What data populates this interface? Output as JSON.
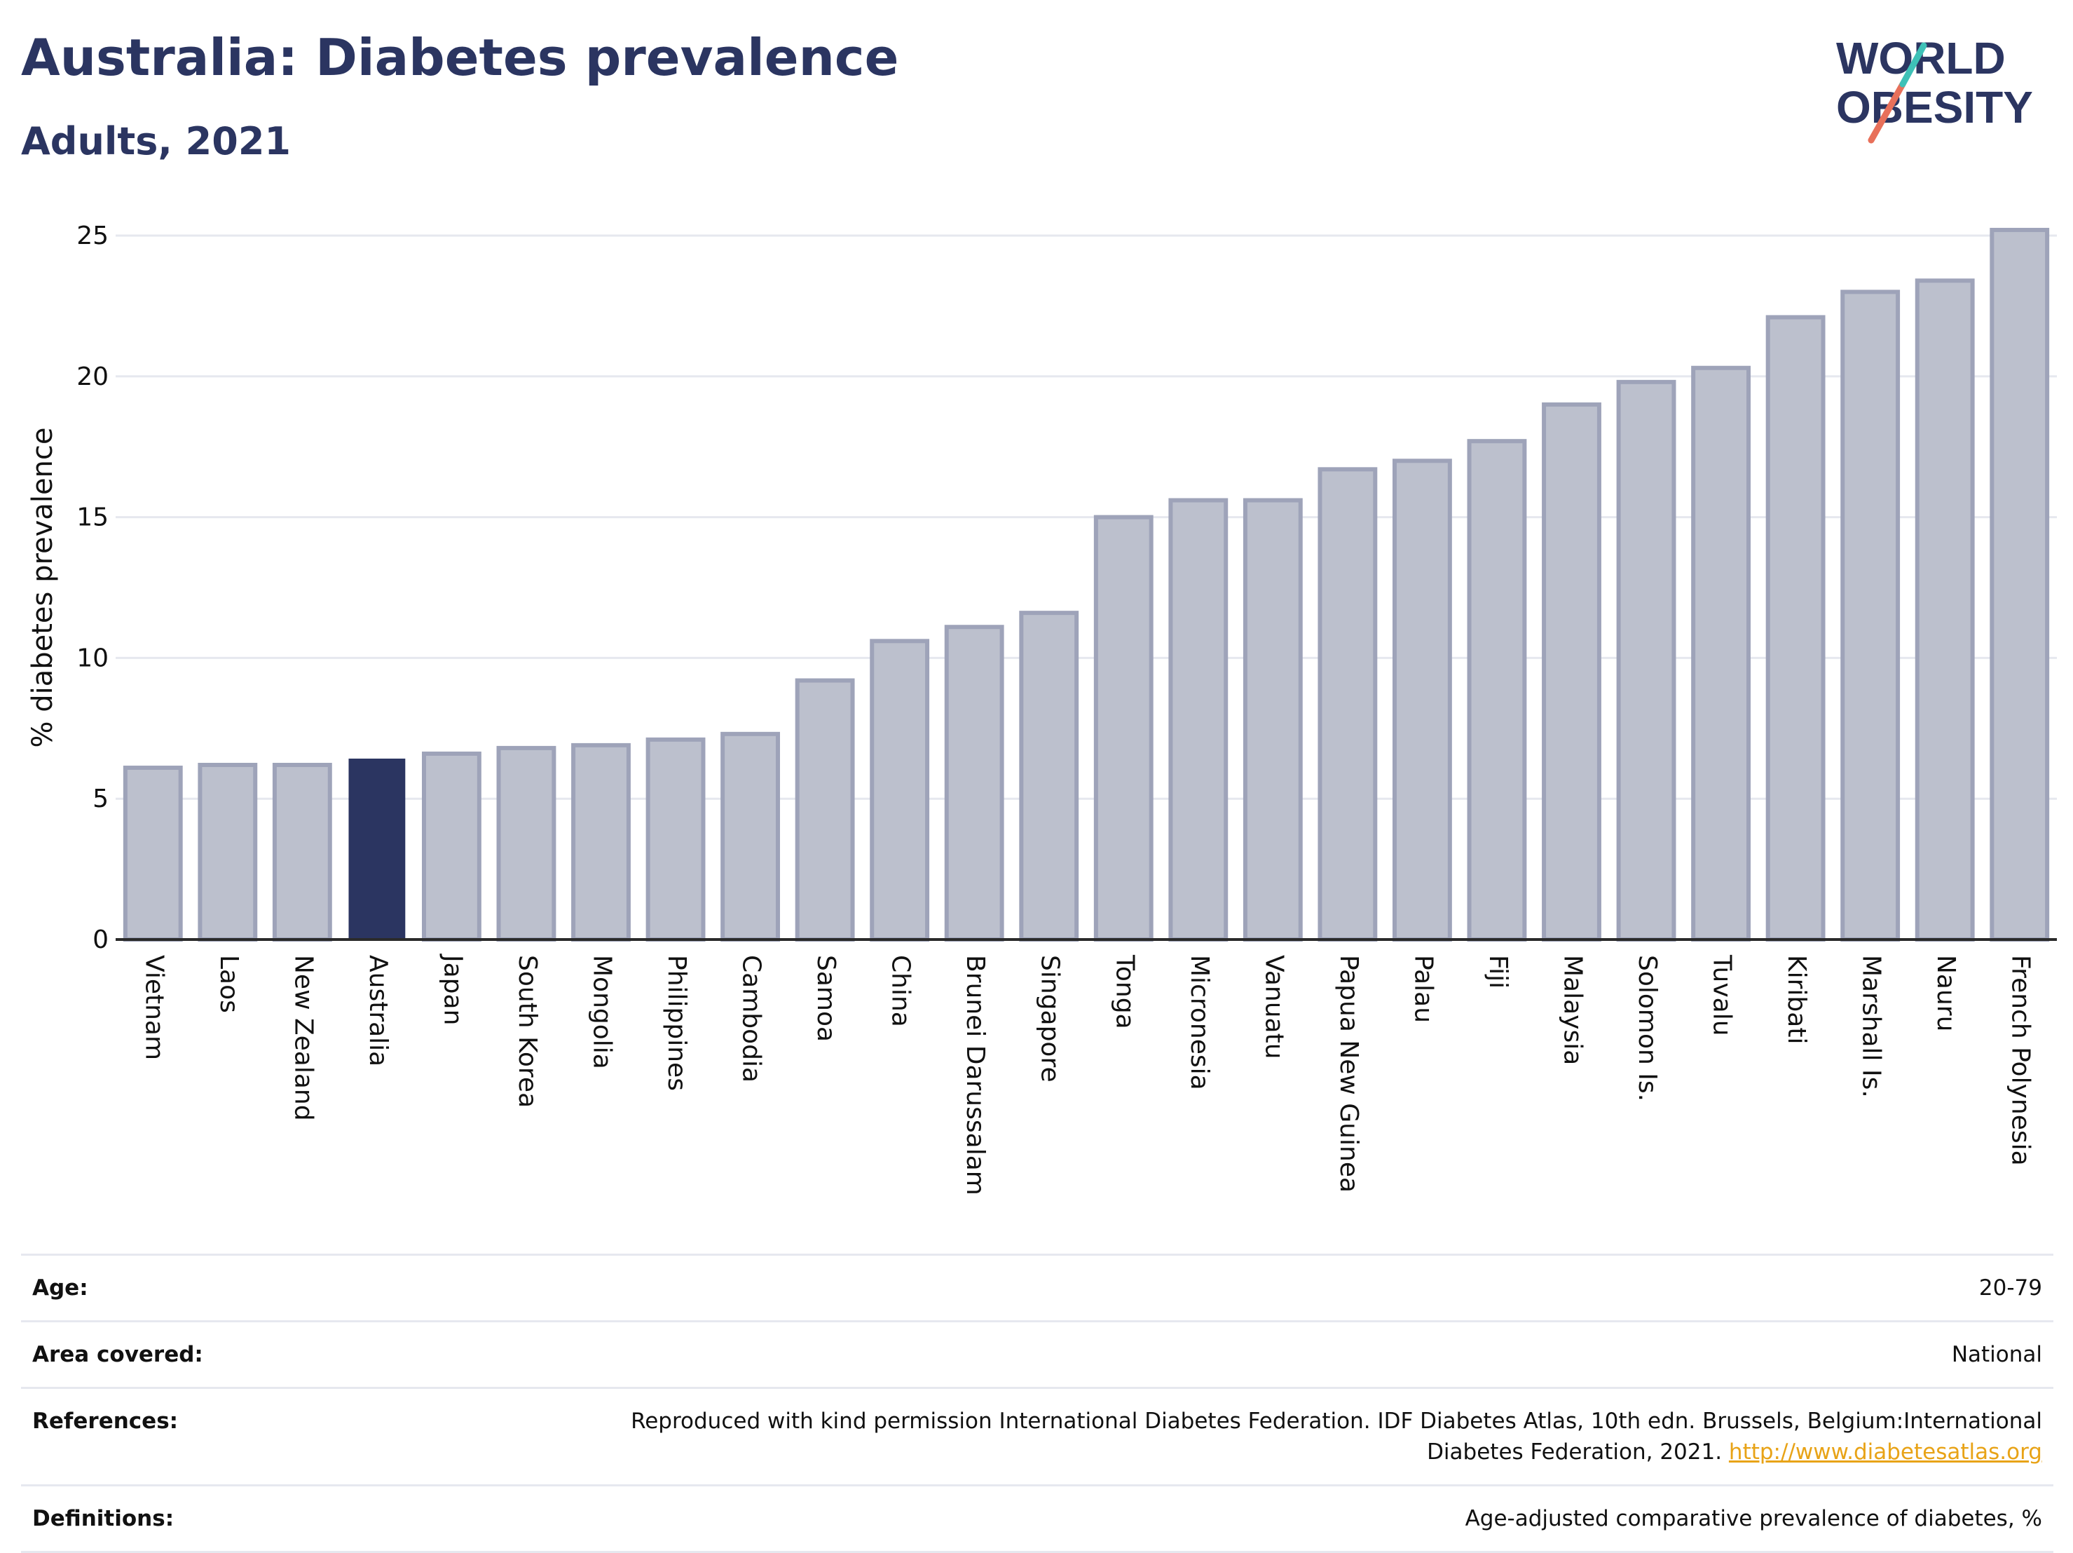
{
  "header": {
    "title": "Australia: Diabetes prevalence",
    "subtitle": "Adults, 2021",
    "logo_line1": "WORLD",
    "logo_line2": "OBESITY"
  },
  "colors": {
    "highlight_bar": "#2b3561",
    "other_bar": "#bcc0cd",
    "other_bar_stroke": "#9ea3b9",
    "logo_teal": "#3ec1b7",
    "logo_coral": "#e8705a",
    "link": "#e8a317"
  },
  "chart_data": {
    "type": "bar",
    "ylabel": "% diabetes prevalence",
    "xlabel": "",
    "ylim": [
      0,
      25
    ],
    "yticks": [
      0,
      5,
      10,
      15,
      20,
      25
    ],
    "grid": true,
    "highlight": "Australia",
    "categories": [
      "Vietnam",
      "Laos",
      "New Zealand",
      "Australia",
      "Japan",
      "South Korea",
      "Mongolia",
      "Philippines",
      "Cambodia",
      "Samoa",
      "China",
      "Brunei Darussalam",
      "Singapore",
      "Tonga",
      "Micronesia",
      "Vanuatu",
      "Papua New Guinea",
      "Palau",
      "Fiji",
      "Malaysia",
      "Solomon Is.",
      "Tuvalu",
      "Kiribati",
      "Marshall Is.",
      "Nauru",
      "French Polynesia"
    ],
    "values": [
      6.1,
      6.2,
      6.2,
      6.4,
      6.6,
      6.8,
      6.9,
      7.1,
      7.3,
      9.2,
      10.6,
      11.1,
      11.6,
      15.0,
      15.6,
      15.6,
      16.7,
      17.0,
      17.7,
      19.0,
      19.8,
      20.3,
      22.1,
      23.0,
      23.4,
      25.2
    ]
  },
  "info": {
    "age_label": "Age:",
    "age_value": "20-79",
    "area_label": "Area covered:",
    "area_value": "National",
    "references_label": "References:",
    "references_text": "Reproduced with kind permission International Diabetes Federation.  IDF Diabetes Atlas, 10th edn. Brussels, Belgium:International Diabetes Federation, 2021. ",
    "references_link": "http://www.diabetesatlas.org",
    "definitions_label": "Definitions:",
    "definitions_value": "Age-adjusted comparative prevalence of diabetes, %"
  }
}
